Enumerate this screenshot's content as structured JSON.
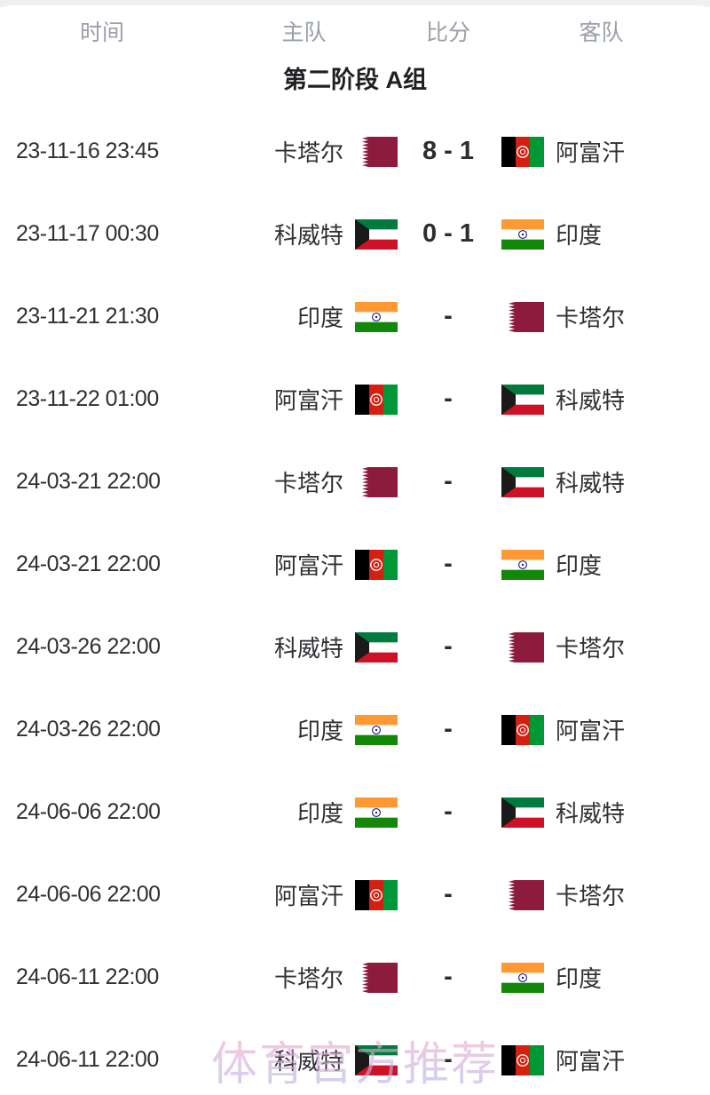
{
  "page": {
    "watermark": "体育官方推荐"
  },
  "table": {
    "columns": {
      "time": "时间",
      "home": "主队",
      "score": "比分",
      "away": "客队"
    },
    "group_title": "第二阶段 A组",
    "rows": [
      {
        "time": "23-11-16 23:45",
        "home": "卡塔尔",
        "home_flag": "qatar",
        "score": "8 - 1",
        "away": "阿富汗",
        "away_flag": "afghanistan"
      },
      {
        "time": "23-11-17 00:30",
        "home": "科威特",
        "home_flag": "kuwait",
        "score": "0 - 1",
        "away": "印度",
        "away_flag": "india"
      },
      {
        "time": "23-11-21 21:30",
        "home": "印度",
        "home_flag": "india",
        "score": "-",
        "away": "卡塔尔",
        "away_flag": "qatar"
      },
      {
        "time": "23-11-22 01:00",
        "home": "阿富汗",
        "home_flag": "afghanistan",
        "score": "-",
        "away": "科威特",
        "away_flag": "kuwait"
      },
      {
        "time": "24-03-21 22:00",
        "home": "卡塔尔",
        "home_flag": "qatar",
        "score": "-",
        "away": "科威特",
        "away_flag": "kuwait"
      },
      {
        "time": "24-03-21 22:00",
        "home": "阿富汗",
        "home_flag": "afghanistan",
        "score": "-",
        "away": "印度",
        "away_flag": "india"
      },
      {
        "time": "24-03-26 22:00",
        "home": "科威特",
        "home_flag": "kuwait",
        "score": "-",
        "away": "卡塔尔",
        "away_flag": "qatar"
      },
      {
        "time": "24-03-26 22:00",
        "home": "印度",
        "home_flag": "india",
        "score": "-",
        "away": "阿富汗",
        "away_flag": "afghanistan"
      },
      {
        "time": "24-06-06 22:00",
        "home": "印度",
        "home_flag": "india",
        "score": "-",
        "away": "科威特",
        "away_flag": "kuwait"
      },
      {
        "time": "24-06-06 22:00",
        "home": "阿富汗",
        "home_flag": "afghanistan",
        "score": "-",
        "away": "卡塔尔",
        "away_flag": "qatar"
      },
      {
        "time": "24-06-11 22:00",
        "home": "卡塔尔",
        "home_flag": "qatar",
        "score": "-",
        "away": "印度",
        "away_flag": "india"
      },
      {
        "time": "24-06-11 22:00",
        "home": "科威特",
        "home_flag": "kuwait",
        "score": "-",
        "away": "阿富汗",
        "away_flag": "afghanistan"
      }
    ]
  },
  "colors": {
    "header_text": "#9aa0a8",
    "body_text": "#303035",
    "title_text": "#1f1f24",
    "watermark_pink": "#f2a7c9",
    "watermark_lavender": "#b7b2e6",
    "qatar_maroon": "#8d1b3d",
    "kuwait_green": "#007a3d",
    "kuwait_red": "#ce1126",
    "kuwait_black": "#1a1a1a",
    "india_saffron": "#ff9933",
    "india_green": "#138808",
    "india_navy": "#000080",
    "afghanistan_black": "#000000",
    "afghanistan_red": "#d32011",
    "afghanistan_green": "#009736"
  }
}
